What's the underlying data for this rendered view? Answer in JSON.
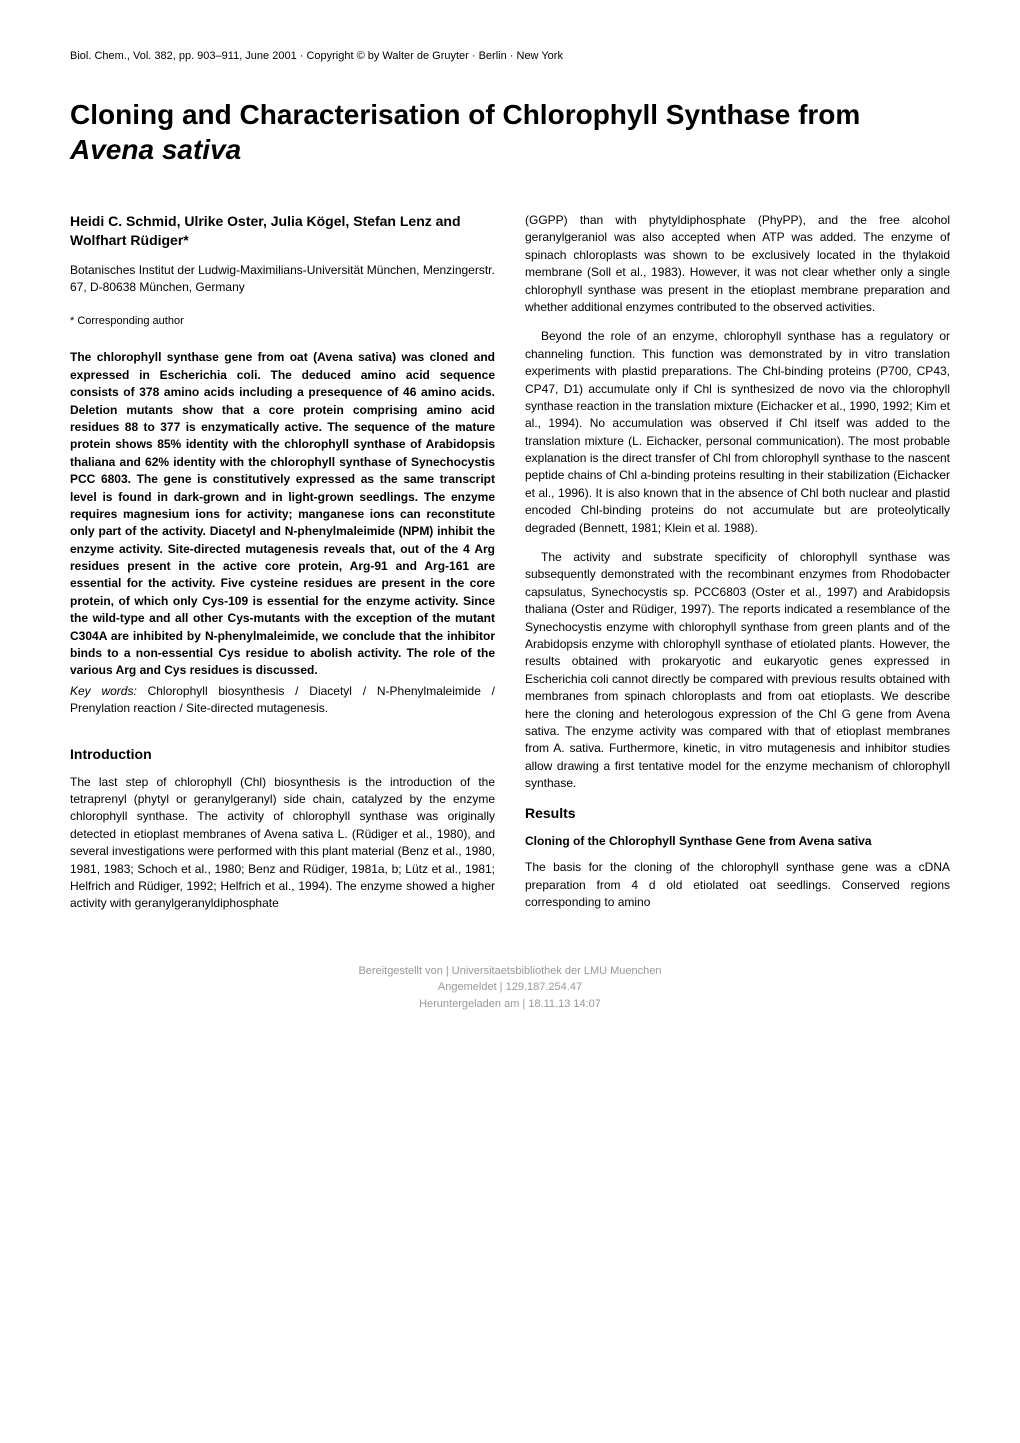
{
  "header": {
    "journal_line": "Biol. Chem., Vol. 382, pp. 903–911, June 2001 · Copyright © by Walter de Gruyter · Berlin · New York"
  },
  "title": {
    "main": "Cloning and Characterisation of Chlorophyll Synthase from ",
    "italic": "Avena sativa"
  },
  "authors": "Heidi C. Schmid, Ulrike Oster, Julia Kögel, Stefan Lenz and Wolfhart Rüdiger*",
  "affiliation": "Botanisches Institut der Ludwig-Maximilians-Universität München, Menzingerstr. 67, D-80638 München, Germany",
  "corresponding": "* Corresponding author",
  "abstract": "The chlorophyll synthase gene from oat (Avena sativa) was cloned and expressed in Escherichia coli. The deduced amino acid sequence consists of 378 amino acids including a presequence of 46 amino acids. Deletion mutants show that a core protein comprising amino acid residues 88 to 377 is enzymatically active. The sequence of the mature protein shows 85% identity with the chlorophyll synthase of Arabidopsis thaliana and 62% identity with the chlorophyll synthase of Synechocystis PCC 6803. The gene is constitutively expressed as the same transcript level is found in dark-grown and in light-grown seedlings. The enzyme requires magnesium ions for activity; manganese ions can reconstitute only part of the activity. Diacetyl and N-phenylmaleimide (NPM) inhibit the enzyme activity. Site-directed mutagenesis reveals that, out of the 4 Arg residues present in the active core protein, Arg-91 and Arg-161 are essential for the activity. Five cysteine residues are present in the core protein, of which only Cys-109 is essential for the enzyme activity. Since the wild-type and all other Cys-mutants with the exception of the mutant C304A are inhibited by N-phenylmaleimide, we conclude that the inhibitor binds to a non-essential Cys residue to abolish activity. The role of the various Arg and Cys residues is discussed.",
  "keywords": {
    "label": "Key words:",
    "text": "Chlorophyll biosynthesis / Diacetyl / N-Phenylmaleimide / Prenylation reaction / Site-directed mutagenesis."
  },
  "sections": {
    "introduction": {
      "heading": "Introduction",
      "p1": "The last step of chlorophyll (Chl) biosynthesis is the introduction of the tetraprenyl (phytyl or geranylgeranyl) side chain, catalyzed by the enzyme chlorophyll synthase. The activity of chlorophyll synthase was originally detected in etioplast membranes of Avena sativa L. (Rüdiger et al., 1980), and several investigations were performed with this plant material (Benz et al., 1980, 1981, 1983; Schoch et al., 1980; Benz and Rüdiger, 1981a, b; Lütz et al., 1981; Helfrich and Rüdiger, 1992; Helfrich et al., 1994). The enzyme showed a higher activity with geranylgeranyldiphosphate",
      "p2": "(GGPP) than with phytyldiphosphate (PhyPP), and the free alcohol geranylgeraniol was also accepted when ATP was added. The enzyme of spinach chloroplasts was shown to be exclusively located in the thylakoid membrane (Soll et al., 1983). However, it was not clear whether only a single chlorophyll synthase was present in the etioplast membrane preparation and whether additional enzymes contributed to the observed activities.",
      "p3": "Beyond the role of an enzyme, chlorophyll synthase has a regulatory or channeling function. This function was demonstrated by in vitro translation experiments with plastid preparations. The Chl-binding proteins (P700, CP43, CP47, D1) accumulate only if Chl is synthesized de novo via the chlorophyll synthase reaction in the translation mixture (Eichacker et al., 1990, 1992; Kim et al., 1994). No accumulation was observed if Chl itself was added to the translation mixture (L. Eichacker, personal communication). The most probable explanation is the direct transfer of Chl from chlorophyll synthase to the nascent peptide chains of Chl a-binding proteins resulting in their stabilization (Eichacker et al., 1996). It is also known that in the absence of Chl both nuclear and plastid encoded Chl-binding proteins do not accumulate but are proteolytically degraded (Bennett, 1981; Klein et al. 1988).",
      "p4": "The activity and substrate specificity of chlorophyll synthase was subsequently demonstrated with the recombinant enzymes from Rhodobacter capsulatus, Synechocystis sp. PCC6803 (Oster et al., 1997) and Arabidopsis thaliana (Oster and Rüdiger, 1997). The reports indicated a resemblance of the Synechocystis enzyme with chlorophyll synthase from green plants and of the Arabidopsis enzyme with chlorophyll synthase of etiolated plants. However, the results obtained with prokaryotic and eukaryotic genes expressed in Escherichia coli cannot directly be compared with previous results obtained with membranes from spinach chloroplasts and from oat etioplasts. We describe here the cloning and heterologous expression of the Chl G gene from Avena sativa. The enzyme activity was compared with that of etioplast membranes from A. sativa. Furthermore, kinetic, in vitro mutagenesis and inhibitor studies allow drawing a first tentative model for the enzyme mechanism of chlorophyll synthase."
    },
    "results": {
      "heading": "Results",
      "sub1": {
        "heading_a": "Cloning of the Chlorophyll Synthase Gene from ",
        "heading_b": "Avena sativa",
        "p1": "The basis for the cloning of the chlorophyll synthase gene was a cDNA preparation from 4 d old etiolated oat seedlings. Conserved regions corresponding to amino"
      }
    }
  },
  "footer": {
    "line1": "Bereitgestellt von | Universitaetsbibliothek der LMU Muenchen",
    "line2": "Angemeldet | 129.187.254.47",
    "line3": "Heruntergeladen am | 18.11.13 14:07"
  }
}
